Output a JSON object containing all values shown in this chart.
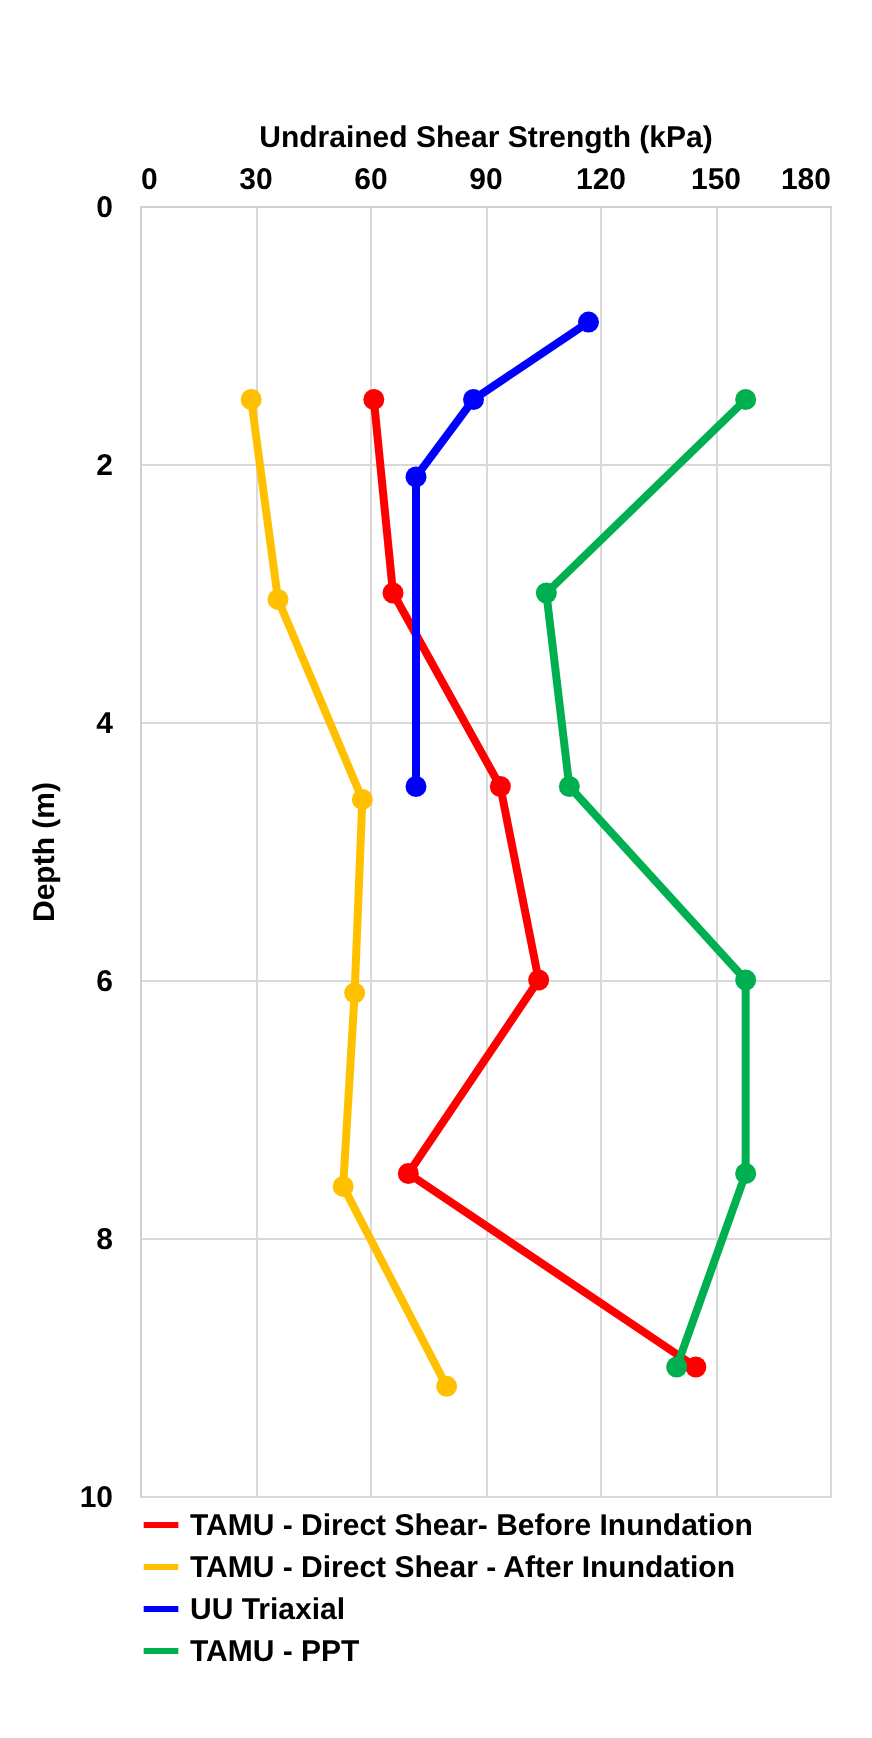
{
  "chart_data": {
    "type": "line",
    "xlabel": "Undrained Shear Strength (kPa)",
    "ylabel": "Depth (m)",
    "xlim": [
      0,
      180
    ],
    "xticks": [
      0,
      30,
      60,
      90,
      120,
      150,
      180
    ],
    "ylim": [
      10,
      0
    ],
    "yticks": [
      0,
      2,
      4,
      6,
      8,
      10
    ],
    "grid": true,
    "legend": "bottom",
    "marker": "circle",
    "line_style": "solid",
    "series": [
      {
        "name": "TAMU - Direct Shear- Before Inundation",
        "color": "#ff0000",
        "x": [
          61,
          66,
          94,
          104,
          70,
          145
        ],
        "values": [
          1.5,
          3.0,
          4.5,
          6.0,
          7.5,
          9.0
        ]
      },
      {
        "name": "TAMU - Direct Shear - After Inundation",
        "color": "#ffc000",
        "x": [
          29,
          36,
          58,
          56,
          53,
          80
        ],
        "values": [
          1.5,
          3.05,
          4.6,
          6.1,
          7.6,
          9.15
        ]
      },
      {
        "name": "UU Triaxial",
        "color": "#0000ff",
        "x": [
          117,
          87,
          72,
          72
        ],
        "values": [
          0.9,
          1.5,
          2.1,
          4.5
        ]
      },
      {
        "name": "TAMU - PPT",
        "color": "#00b050",
        "x": [
          158,
          106,
          112,
          158,
          158,
          140
        ],
        "values": [
          1.5,
          3.0,
          4.5,
          6.0,
          7.5,
          9.0
        ]
      }
    ]
  }
}
